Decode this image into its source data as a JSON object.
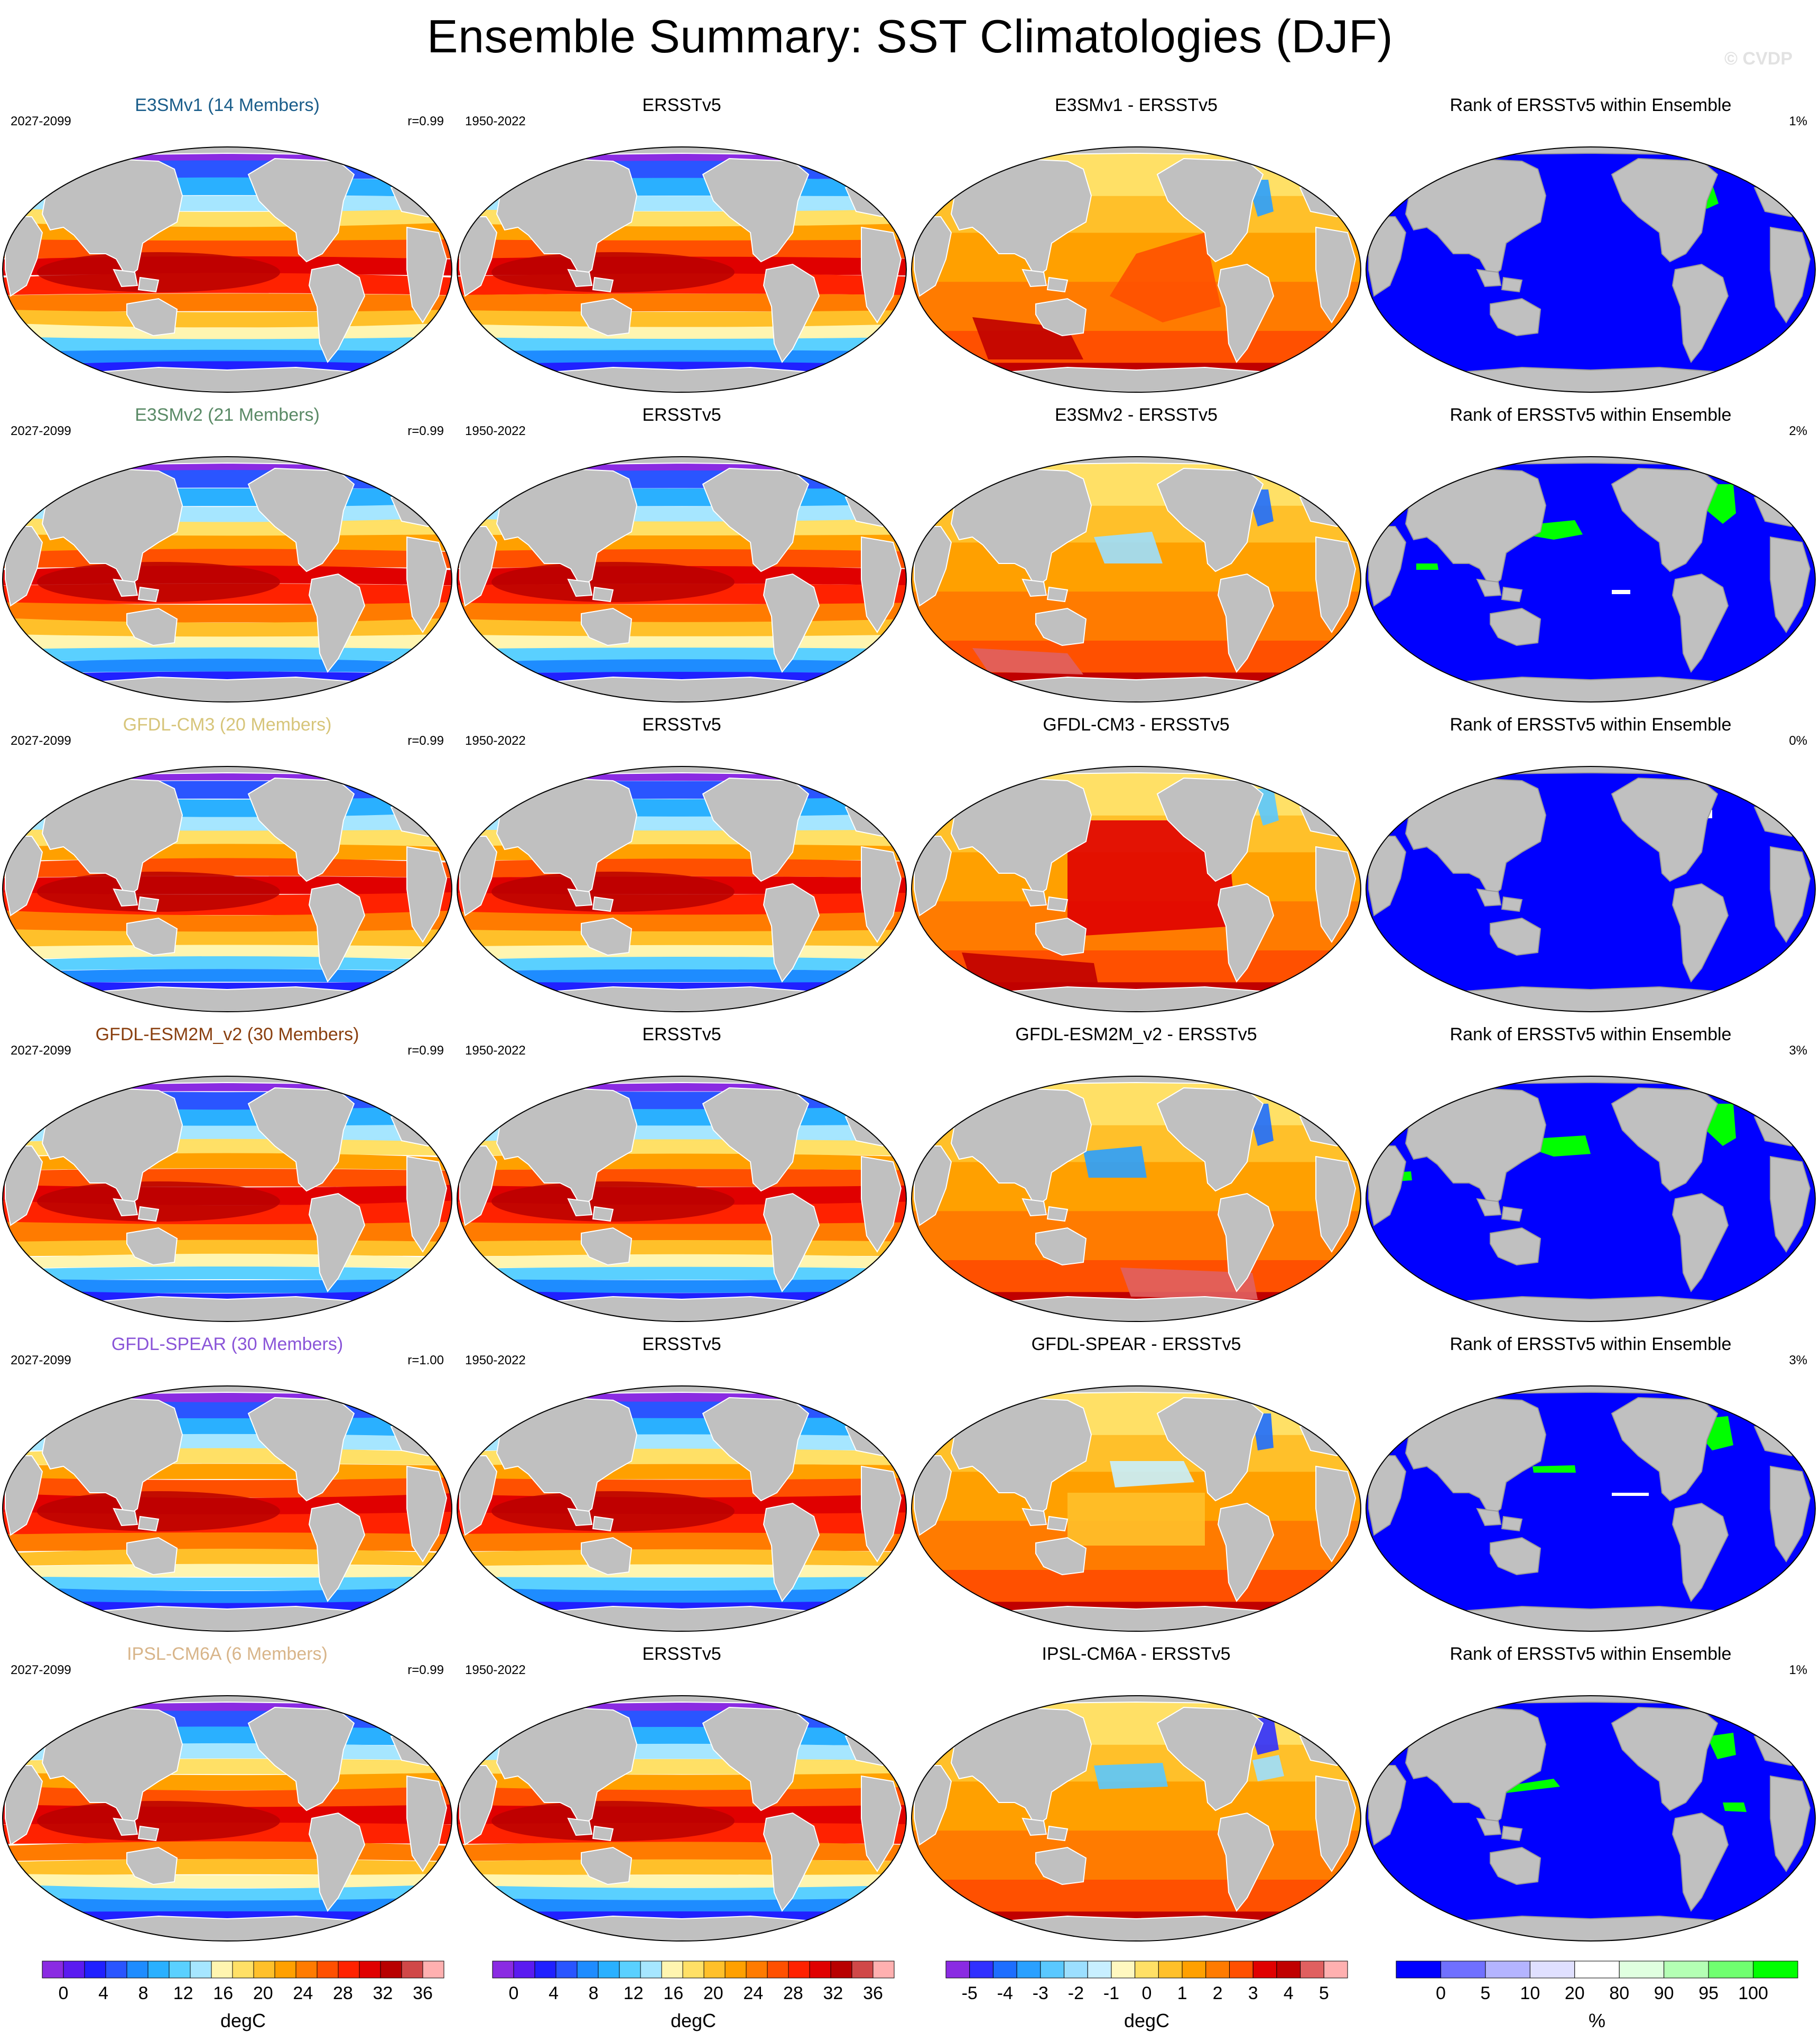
{
  "title": "Ensemble Summary: SST Climatologies (DJF)",
  "watermark": "© CVDP",
  "colors": {
    "land": "#c0c0c0",
    "rank_low": "#0000ff",
    "rank_high": "#00ff00"
  },
  "rows": [
    {
      "model": "E3SMv1 (14 Members)",
      "model_color": "#1a5d8a",
      "model_period": "2027-2099",
      "pattern_corr": "r=0.99",
      "obs_title": "ERSSTv5",
      "obs_period": "1950-2022",
      "diff_title": "E3SMv1 - ERSSTv5",
      "rank_title": "Rank of ERSSTv5 within Ensemble",
      "rank_pct": "1%"
    },
    {
      "model": "E3SMv2 (21 Members)",
      "model_color": "#5a8a66",
      "model_period": "2027-2099",
      "pattern_corr": "r=0.99",
      "obs_title": "ERSSTv5",
      "obs_period": "1950-2022",
      "diff_title": "E3SMv2 - ERSSTv5",
      "rank_title": "Rank of ERSSTv5 within Ensemble",
      "rank_pct": "2%"
    },
    {
      "model": "GFDL-CM3 (20 Members)",
      "model_color": "#d7c57a",
      "model_period": "2027-2099",
      "pattern_corr": "r=0.99",
      "obs_title": "ERSSTv5",
      "obs_period": "1950-2022",
      "diff_title": "GFDL-CM3 - ERSSTv5",
      "rank_title": "Rank of ERSSTv5 within Ensemble",
      "rank_pct": "0%"
    },
    {
      "model": "GFDL-ESM2M_v2 (30 Members)",
      "model_color": "#8a4010",
      "model_period": "2027-2099",
      "pattern_corr": "r=0.99",
      "obs_title": "ERSSTv5",
      "obs_period": "1950-2022",
      "diff_title": "GFDL-ESM2M_v2 - ERSSTv5",
      "rank_title": "Rank of ERSSTv5 within Ensemble",
      "rank_pct": "3%"
    },
    {
      "model": "GFDL-SPEAR (30 Members)",
      "model_color": "#8a55d8",
      "model_period": "2027-2099",
      "pattern_corr": "r=1.00",
      "obs_title": "ERSSTv5",
      "obs_period": "1950-2022",
      "diff_title": "GFDL-SPEAR - ERSSTv5",
      "rank_title": "Rank of ERSSTv5 within Ensemble",
      "rank_pct": "3%"
    },
    {
      "model": "IPSL-CM6A (6 Members)",
      "model_color": "#d8b58a",
      "model_period": "2027-2099",
      "pattern_corr": "r=0.99",
      "obs_title": "ERSSTv5",
      "obs_period": "1950-2022",
      "diff_title": "IPSL-CM6A - ERSSTv5",
      "rank_title": "Rank of ERSSTv5 within Ensemble",
      "rank_pct": "1%"
    }
  ],
  "colorbars": [
    {
      "unit": "degC",
      "tick_labels": [
        "0",
        "4",
        "8",
        "12",
        "16",
        "20",
        "24",
        "28",
        "32",
        "36"
      ],
      "colors": [
        "#8a2be2",
        "#5a1bf0",
        "#2020ff",
        "#2a55ff",
        "#1e8cff",
        "#2ab0ff",
        "#5ad0ff",
        "#a6e6ff",
        "#fff5b0",
        "#ffe066",
        "#ffc02a",
        "#ffa000",
        "#ff7b00",
        "#ff5000",
        "#ff2200",
        "#e00000",
        "#b80000",
        "#d04848",
        "#ffb0b0"
      ]
    },
    {
      "unit": "degC",
      "tick_labels": [
        "0",
        "4",
        "8",
        "12",
        "16",
        "20",
        "24",
        "28",
        "32",
        "36"
      ],
      "colors": [
        "#8a2be2",
        "#5a1bf0",
        "#2020ff",
        "#2a55ff",
        "#1e8cff",
        "#2ab0ff",
        "#5ad0ff",
        "#a6e6ff",
        "#fff5b0",
        "#ffe066",
        "#ffc02a",
        "#ffa000",
        "#ff7b00",
        "#ff5000",
        "#ff2200",
        "#e00000",
        "#b80000",
        "#d04848",
        "#ffb0b0"
      ]
    },
    {
      "unit": "degC",
      "tick_labels": [
        "-5",
        "-4",
        "-3",
        "-2",
        "-1",
        "0",
        "1",
        "2",
        "3",
        "4",
        "5"
      ],
      "colors": [
        "#8a2be2",
        "#3030ff",
        "#1e6eff",
        "#2aa0ff",
        "#5ac8ff",
        "#9cdfff",
        "#c8efff",
        "#fff8c0",
        "#ffe066",
        "#ffc02a",
        "#ffa000",
        "#ff7b00",
        "#ff5000",
        "#e00000",
        "#c00000",
        "#e06060",
        "#ffb0b0"
      ]
    },
    {
      "unit": "%",
      "tick_labels": [
        "0",
        "5",
        "10",
        "20",
        "80",
        "90",
        "95",
        "100"
      ],
      "colors": [
        "#0000ff",
        "#7070ff",
        "#b4b4ff",
        "#e0e0ff",
        "#ffffff",
        "#e0ffe0",
        "#b4ffb4",
        "#70ff70",
        "#00ff00"
      ]
    }
  ],
  "chart_data": [
    {
      "type": "heatmap",
      "description_kind": "map grid",
      "columns": [
        "model climatology",
        "observed climatology",
        "difference",
        "rank"
      ],
      "row_models": [
        "E3SMv1",
        "E3SMv2",
        "GFDL-CM3",
        "GFDL-ESM2M_v2",
        "GFDL-SPEAR",
        "IPSL-CM6A"
      ],
      "observations": "ERSSTv5",
      "clim_range": [
        0,
        36
      ],
      "diff_range": [
        -5,
        5
      ],
      "rank_range": [
        0,
        100
      ],
      "rank_pct": [
        "1%",
        "2%",
        "0%",
        "3%",
        "3%",
        "1%"
      ],
      "pattern_corr": [
        "r=0.99",
        "r=0.99",
        "r=0.99",
        "r=0.99",
        "r=1.00",
        "r=0.99"
      ]
    }
  ]
}
